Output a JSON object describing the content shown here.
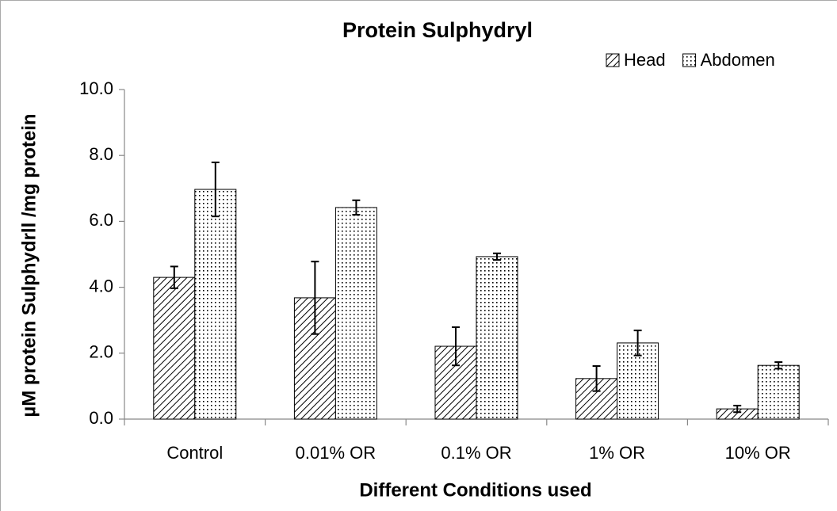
{
  "chart_data": {
    "type": "bar",
    "title": "Protein Sulphydryl",
    "x_label": "Different Conditions used",
    "y_label": "µM protein Sulphydrll /mg protein",
    "categories": [
      "Control",
      "0.01% OR",
      "0.1% OR",
      "1% OR",
      "10% OR"
    ],
    "series": [
      {
        "name": "Head",
        "color": "#000000",
        "pattern": "diagonal",
        "values": [
          4.3,
          3.68,
          2.21,
          1.23,
          0.31
        ],
        "errors": [
          0.33,
          1.1,
          0.58,
          0.38,
          0.1
        ]
      },
      {
        "name": "Abdomen",
        "color": "#000000",
        "pattern": "dots",
        "values": [
          6.97,
          6.42,
          4.93,
          2.31,
          1.63
        ],
        "errors": [
          0.82,
          0.22,
          0.1,
          0.38,
          0.1
        ]
      }
    ],
    "ylim": [
      0,
      10
    ],
    "yticks": [
      {
        "value": 0,
        "label": "0.0"
      },
      {
        "value": 2,
        "label": "2.0"
      },
      {
        "value": 4,
        "label": "4.0"
      },
      {
        "value": 6,
        "label": "6.0"
      },
      {
        "value": 8,
        "label": "8.0"
      },
      {
        "value": 10,
        "label": "10.0"
      }
    ],
    "legend": "top-right",
    "grid": false
  }
}
